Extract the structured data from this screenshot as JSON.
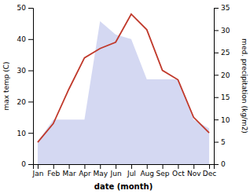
{
  "chart_data": {
    "type": "line",
    "xlabel": "date (month)",
    "ylabel": "max temp (C)",
    "y2label": "med. precipitation (kg/m2)",
    "categories": [
      "Jan",
      "Feb",
      "Mar",
      "Apr",
      "May",
      "Jun",
      "Jul",
      "Aug",
      "Sep",
      "Oct",
      "Nov",
      "Dec"
    ],
    "series": [
      {
        "type": "area",
        "axis": "y2",
        "color": "#b0b8e8",
        "values": [
          5,
          10,
          10,
          10,
          32,
          29,
          28,
          19,
          19,
          19,
          10,
          8
        ]
      },
      {
        "type": "line",
        "color": "#c0392b",
        "values": [
          7,
          13,
          24,
          34,
          37,
          39,
          48,
          43,
          30,
          27,
          15,
          10
        ]
      }
    ],
    "ylim": [
      0,
      50
    ],
    "yticks": [
      0,
      10,
      20,
      30,
      40,
      50
    ],
    "y2lim": [
      0,
      35
    ],
    "y2ticks": [
      0,
      5,
      10,
      15,
      20,
      25,
      30,
      35
    ],
    "grid": false
  }
}
